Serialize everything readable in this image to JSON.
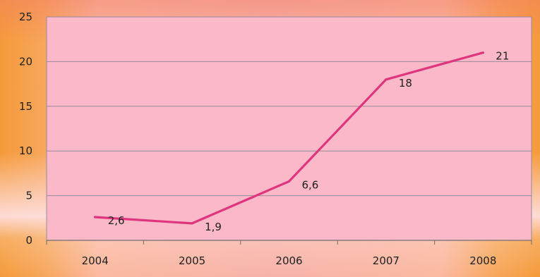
{
  "chart_data": {
    "type": "line",
    "categories": [
      "2004",
      "2005",
      "2006",
      "2007",
      "2008"
    ],
    "values": [
      2.6,
      1.9,
      6.6,
      18,
      21
    ],
    "data_labels": [
      "2,6",
      "1,9",
      "6,6",
      "18",
      "21"
    ],
    "y_ticks": [
      "0",
      "5",
      "10",
      "15",
      "20",
      "25"
    ],
    "ylim": [
      0,
      25
    ],
    "grid": true,
    "legend": "none",
    "title": "",
    "xlabel": "",
    "ylabel": ""
  },
  "colors": {
    "plot_area": "#fbb8c8",
    "line": "#e0357e",
    "grid": "#9a8a9a"
  }
}
